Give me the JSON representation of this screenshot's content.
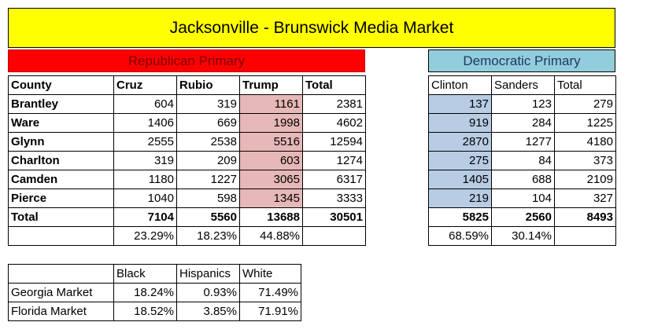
{
  "title": "Jacksonville - Brunswick Media Market",
  "republican": {
    "label": "Republican Primary",
    "headers": [
      "County",
      "Cruz",
      "Rubio",
      "Trump",
      "Total"
    ],
    "rows": [
      {
        "county": "Brantley",
        "cruz": "604",
        "rubio": "319",
        "trump": "1161",
        "total": "2381"
      },
      {
        "county": "Ware",
        "cruz": "1406",
        "rubio": "669",
        "trump": "1998",
        "total": "4602"
      },
      {
        "county": "Glynn",
        "cruz": "2555",
        "rubio": "2538",
        "trump": "5516",
        "total": "12594"
      },
      {
        "county": "Charlton",
        "cruz": "319",
        "rubio": "209",
        "trump": "603",
        "total": "1274"
      },
      {
        "county": "Camden",
        "cruz": "1180",
        "rubio": "1227",
        "trump": "3065",
        "total": "6317"
      },
      {
        "county": "Pierce",
        "cruz": "1040",
        "rubio": "598",
        "trump": "1345",
        "total": "3333"
      }
    ],
    "total_row": {
      "label": "Total",
      "cruz": "7104",
      "rubio": "5560",
      "trump": "13688",
      "total": "30501"
    },
    "pct_row": {
      "cruz": "23.29%",
      "rubio": "18.23%",
      "trump": "44.88%"
    }
  },
  "democratic": {
    "label": "Democratic Primary",
    "headers": [
      "Clinton",
      "Sanders",
      "Total"
    ],
    "rows": [
      {
        "clinton": "137",
        "sanders": "123",
        "total": "279"
      },
      {
        "clinton": "919",
        "sanders": "284",
        "total": "1225"
      },
      {
        "clinton": "2870",
        "sanders": "1277",
        "total": "4180"
      },
      {
        "clinton": "275",
        "sanders": "84",
        "total": "373"
      },
      {
        "clinton": "1405",
        "sanders": "688",
        "total": "2109"
      },
      {
        "clinton": "219",
        "sanders": "104",
        "total": "327"
      }
    ],
    "total_row": {
      "clinton": "5825",
      "sanders": "2560",
      "total": "8493"
    },
    "pct_row": {
      "clinton": "68.59%",
      "sanders": "30.14%"
    }
  },
  "demographics": {
    "headers": [
      "Black",
      "Hispanics",
      "White"
    ],
    "rows": [
      {
        "market": "Georgia Market",
        "black": "18.24%",
        "hispanics": "0.93%",
        "white": "71.49%"
      },
      {
        "market": "Florida Market",
        "black": "18.52%",
        "hispanics": "3.85%",
        "white": "71.91%"
      }
    ]
  },
  "colors": {
    "title_bg": "#ffff00",
    "republican_band": "#ff0000",
    "democratic_band": "#92cddc",
    "trump_highlight": "#e6b8b7",
    "clinton_highlight": "#b8cce4"
  }
}
